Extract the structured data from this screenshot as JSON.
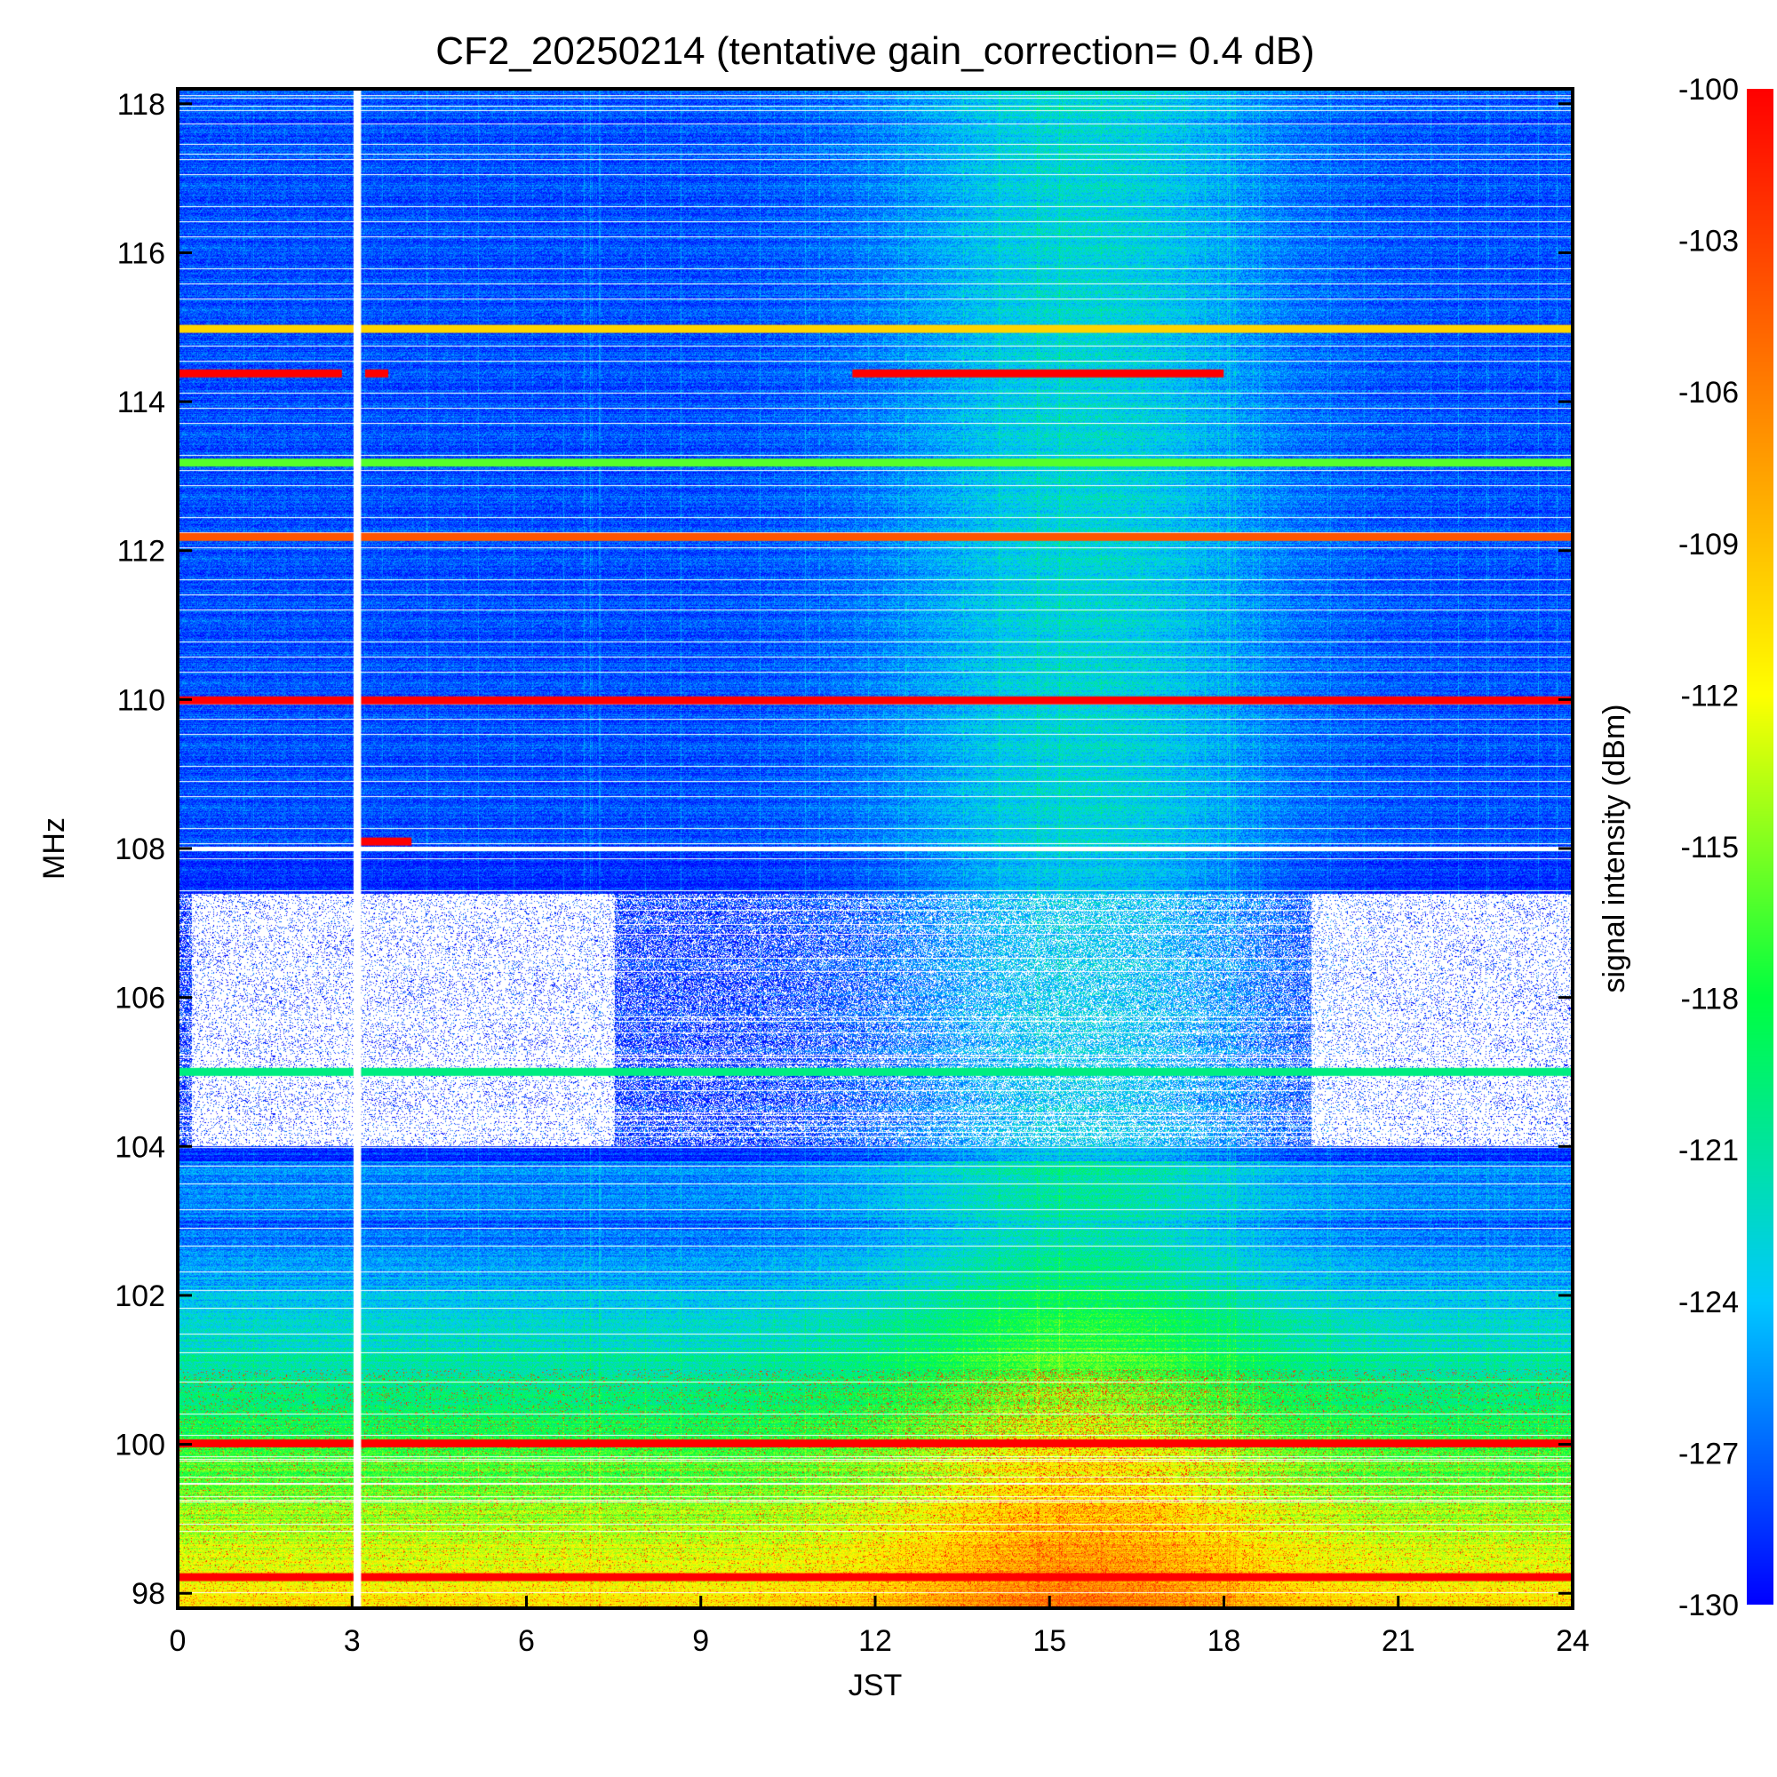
{
  "chart_data": {
    "type": "heatmap",
    "title": "CF2_20250214 (tentative gain_correction=  0.4 dB)",
    "xlabel": "JST",
    "ylabel": "MHz",
    "colorbar_label": "signal intensity (dBm)",
    "xlim": [
      0,
      24
    ],
    "ylim": [
      97.8,
      118.2
    ],
    "x_ticks": [
      "0",
      "3",
      "6",
      "9",
      "12",
      "15",
      "18",
      "21",
      "24"
    ],
    "y_ticks": [
      "98",
      "100",
      "102",
      "104",
      "106",
      "108",
      "110",
      "112",
      "114",
      "116",
      "118"
    ],
    "colorbar_range": [
      -130,
      -100
    ],
    "colorbar_ticks": [
      "-100",
      "-103",
      "-106",
      "-109",
      "-112",
      "-115",
      "-118",
      "-121",
      "-124",
      "-127",
      "-130"
    ],
    "colormap": [
      "#0000ff",
      "#00c8ff",
      "#00ff40",
      "#ffff00",
      "#ff8000",
      "#ff0000"
    ],
    "grid": false,
    "data_gap_jst": [
      3.0,
      3.1
    ],
    "strong_signals": [
      {
        "freq_mhz": 114.4,
        "intervals_jst": [
          [
            0,
            2.8
          ],
          [
            3.2,
            3.6
          ],
          [
            11.6,
            18.0
          ]
        ],
        "level_dbm": -100
      },
      {
        "freq_mhz": 115.0,
        "intervals_jst": [
          [
            0,
            24
          ]
        ],
        "level_dbm": -110
      },
      {
        "freq_mhz": 113.2,
        "intervals_jst": [
          [
            0,
            24
          ]
        ],
        "level_dbm": -116
      },
      {
        "freq_mhz": 112.2,
        "intervals_jst": [
          [
            0,
            24
          ]
        ],
        "level_dbm": -104
      },
      {
        "freq_mhz": 110.0,
        "intervals_jst": [
          [
            0,
            24
          ]
        ],
        "level_dbm": -100
      },
      {
        "freq_mhz": 108.1,
        "intervals_jst": [
          [
            3.1,
            4.0
          ]
        ],
        "level_dbm": -100
      },
      {
        "freq_mhz": 105.0,
        "intervals_jst": [
          [
            0,
            24
          ]
        ],
        "level_dbm": -120
      },
      {
        "freq_mhz": 100.0,
        "intervals_jst": [
          [
            0,
            24
          ]
        ],
        "level_dbm": -100
      },
      {
        "freq_mhz": 98.2,
        "intervals_jst": [
          [
            0,
            24
          ]
        ],
        "level_dbm": -100
      }
    ],
    "saturated_regions": [
      {
        "freq_mhz": [
          104.0,
          107.4
        ],
        "intervals_jst": [
          [
            0.2,
            7.5
          ],
          [
            19.5,
            24
          ]
        ]
      }
    ]
  }
}
